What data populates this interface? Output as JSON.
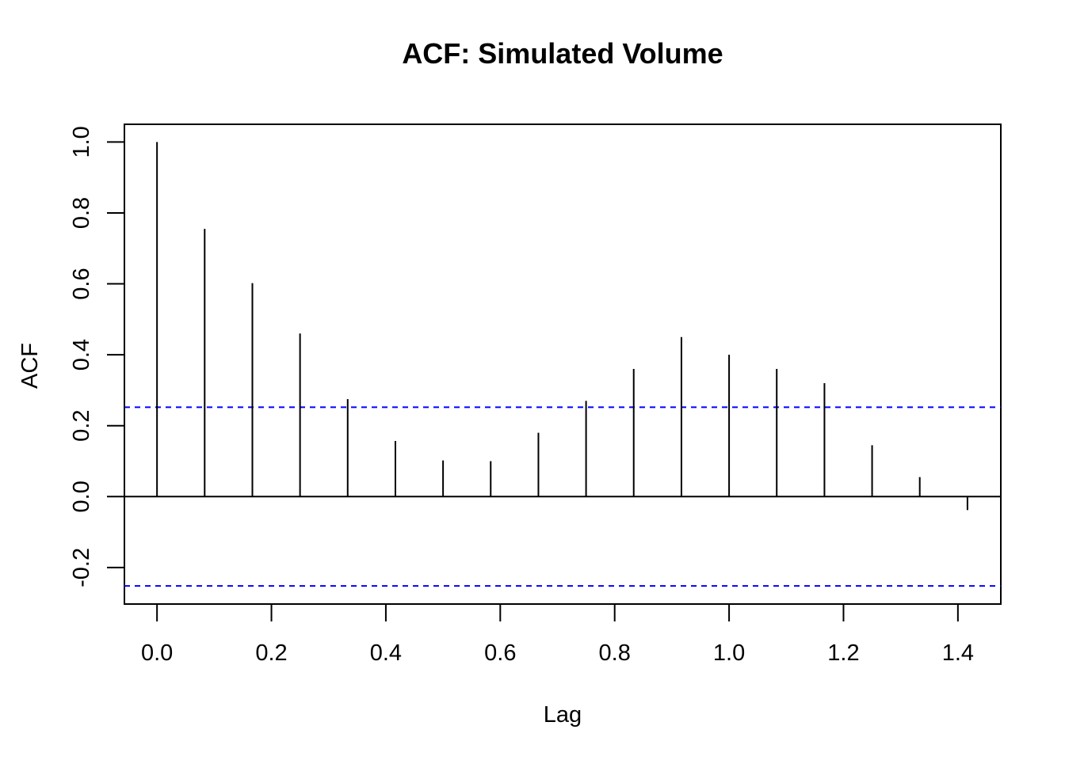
{
  "chart_data": {
    "type": "bar",
    "title": "ACF: Simulated Volume",
    "xlabel": "Lag",
    "ylabel": "ACF",
    "xlim": [
      -0.057,
      1.475
    ],
    "ylim": [
      -0.303,
      1.05
    ],
    "x_ticks": [
      "0.0",
      "0.2",
      "0.4",
      "0.6",
      "0.8",
      "1.0",
      "1.2",
      "1.4"
    ],
    "y_ticks": [
      "-0.2",
      "0.0",
      "0.2",
      "0.4",
      "0.6",
      "0.8",
      "1.0"
    ],
    "lags": [
      0,
      0.0833,
      0.1667,
      0.25,
      0.3333,
      0.4167,
      0.5,
      0.5833,
      0.6667,
      0.75,
      0.8333,
      0.9167,
      1.0,
      1.0833,
      1.1667,
      1.25,
      1.3333,
      1.4167
    ],
    "acf": [
      1.0,
      0.755,
      0.602,
      0.46,
      0.275,
      0.157,
      0.102,
      0.1,
      0.18,
      0.27,
      0.36,
      0.45,
      0.4,
      0.36,
      0.32,
      0.145,
      0.055,
      -0.038
    ],
    "confidence_bound": 0.252,
    "grid": false,
    "legend": "none",
    "colors": {
      "bars": "#000000",
      "confidence": "#0000ff",
      "axes": "#000000"
    }
  }
}
